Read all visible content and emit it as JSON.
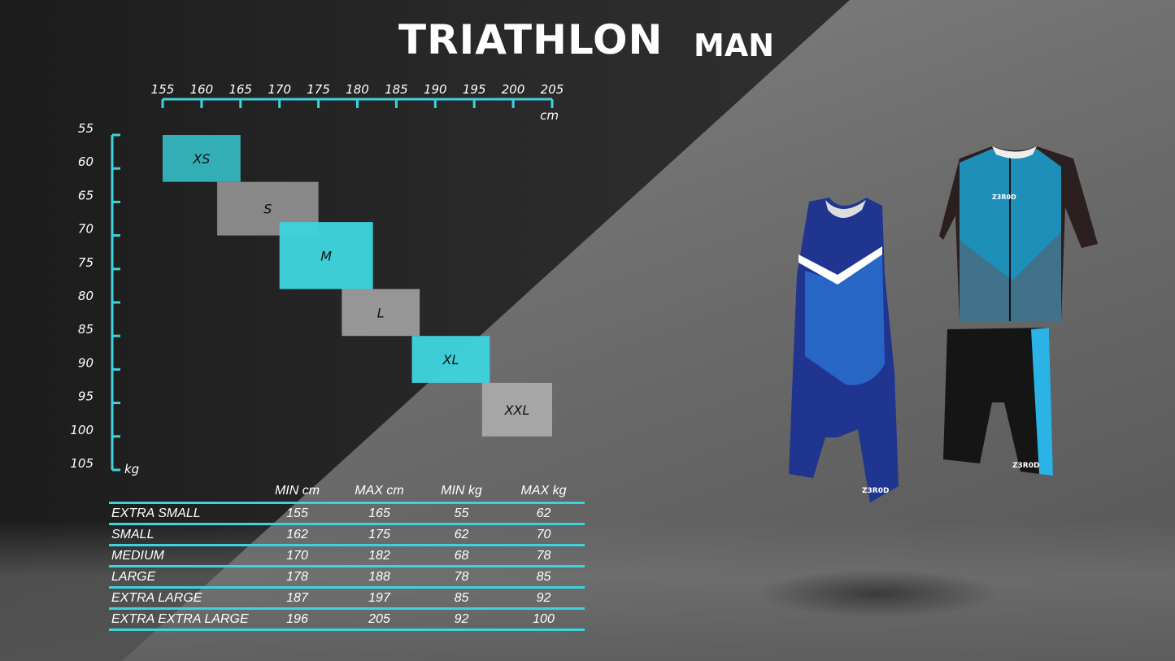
{
  "header": {
    "title": "TRIATHLON",
    "subtitle": "MAN"
  },
  "colors": {
    "accent": "#3dd3dc",
    "xs_box": "#34b3bb",
    "gray_box": "#9a9a9a",
    "background": "#222222"
  },
  "chart_data": {
    "type": "heatmap",
    "xlabel": "cm",
    "ylabel": "kg",
    "xlim": [
      155,
      205
    ],
    "ylim": [
      55,
      105
    ],
    "x_ticks": [
      155,
      160,
      165,
      170,
      175,
      180,
      185,
      190,
      195,
      200,
      205
    ],
    "y_ticks": [
      55,
      60,
      65,
      70,
      75,
      80,
      85,
      90,
      95,
      100,
      105
    ],
    "boxes": [
      {
        "label": "XS",
        "x": [
          155,
          165
        ],
        "y": [
          55,
          62
        ],
        "color": "#34b3bb"
      },
      {
        "label": "S",
        "x": [
          162,
          175
        ],
        "y": [
          62,
          70
        ],
        "color": "#9a9a9a"
      },
      {
        "label": "M",
        "x": [
          170,
          182
        ],
        "y": [
          68,
          78
        ],
        "color": "#3dd3dc"
      },
      {
        "label": "L",
        "x": [
          178,
          188
        ],
        "y": [
          78,
          85
        ],
        "color": "#9a9a9a"
      },
      {
        "label": "XL",
        "x": [
          187,
          197
        ],
        "y": [
          85,
          92
        ],
        "color": "#3dd3dc"
      },
      {
        "label": "XXL",
        "x": [
          196,
          205
        ],
        "y": [
          92,
          100
        ],
        "color": "#a8a8a8"
      }
    ]
  },
  "table": {
    "headers": [
      "",
      "MIN cm",
      "MAX cm",
      "MIN kg",
      "MAX kg"
    ],
    "rows": [
      [
        "EXTRA SMALL",
        "155",
        "165",
        "55",
        "62"
      ],
      [
        "SMALL",
        "162",
        "175",
        "62",
        "70"
      ],
      [
        "MEDIUM",
        "170",
        "182",
        "68",
        "78"
      ],
      [
        "LARGE",
        "178",
        "188",
        "78",
        "85"
      ],
      [
        "EXTRA LARGE",
        "187",
        "197",
        "85",
        "92"
      ],
      [
        "EXTRA EXTRA LARGE",
        "196",
        "205",
        "92",
        "100"
      ]
    ]
  },
  "products": [
    {
      "name": "trisuit-sleeveless",
      "brand": "Z3R0D"
    },
    {
      "name": "tri-top-and-shorts",
      "brand": "Z3R0D"
    }
  ]
}
